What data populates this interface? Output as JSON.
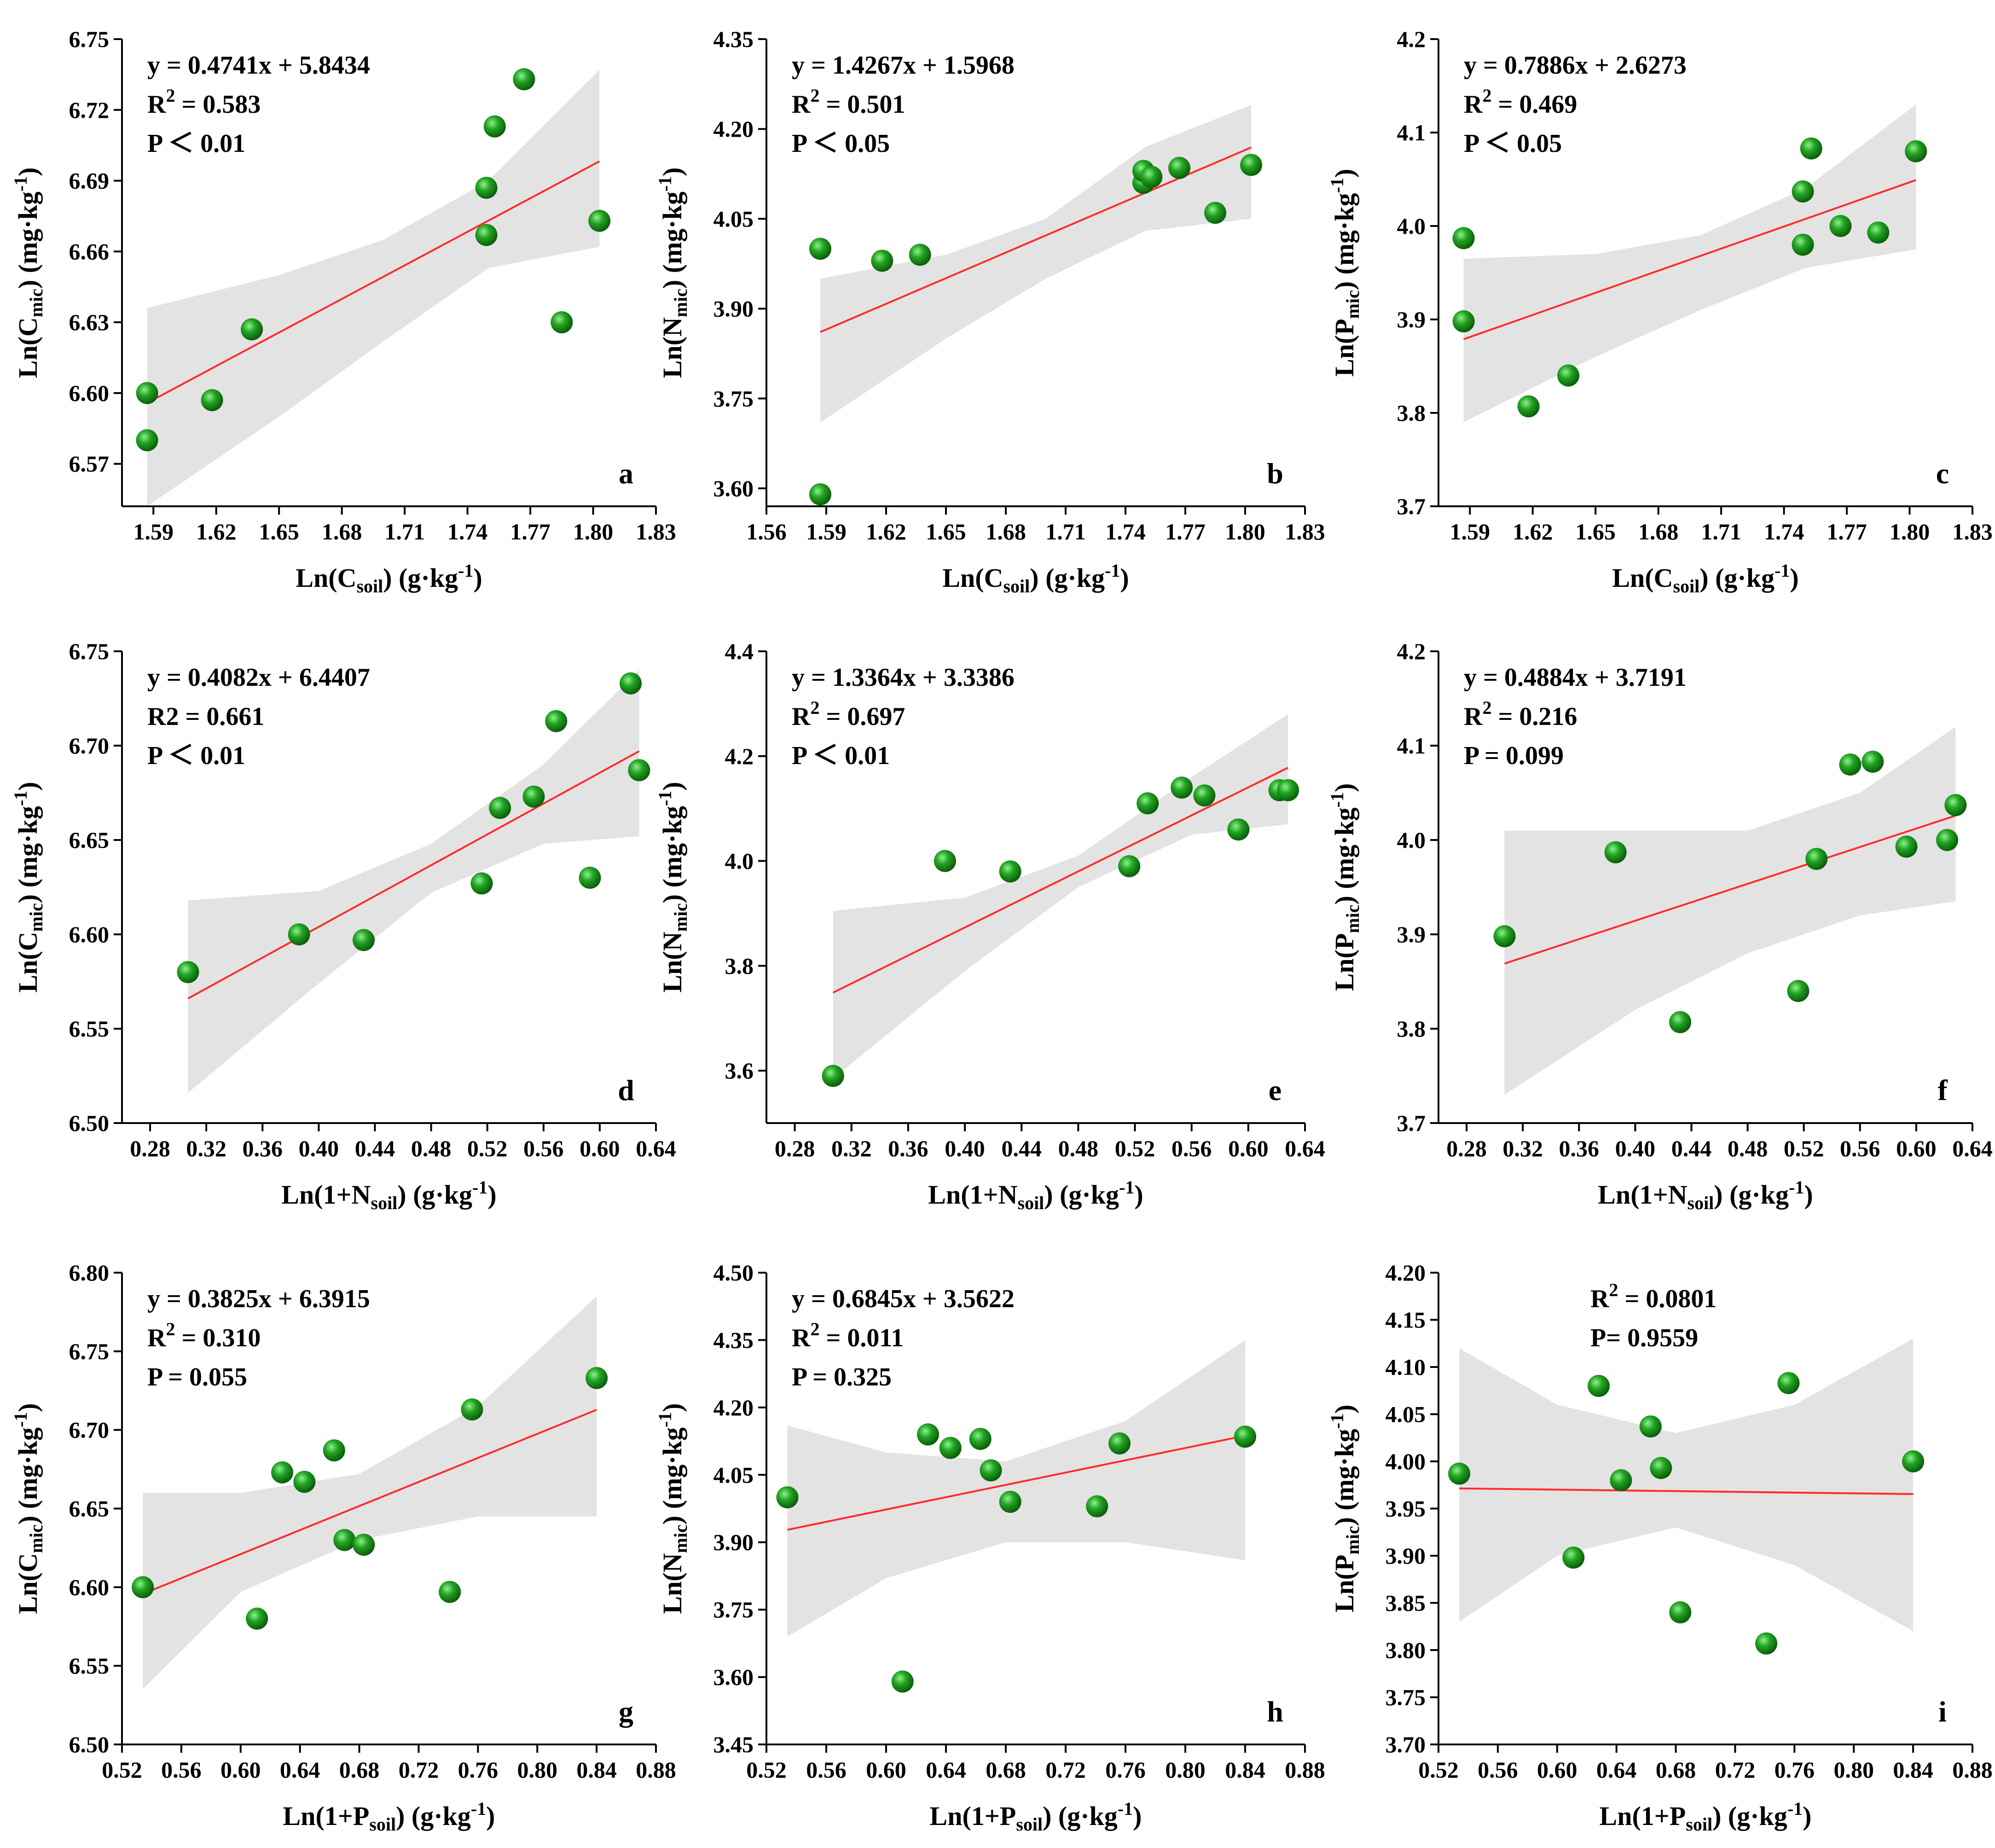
{
  "chart_data": [
    {
      "type": "scatter",
      "panel": "a",
      "xlabel_main": "Ln(C",
      "xlabel_sub": "soil",
      "xlabel_tail": ") (g·kg",
      "ylabel_main": "Ln(C",
      "ylabel_sub": "mic",
      "ylabel_tail": ") (mg·kg",
      "unit_exp": "-1",
      "xlim": [
        1.575,
        1.83
      ],
      "ylim": [
        6.552,
        6.75
      ],
      "xticks": [
        "1.59",
        "1.62",
        "1.65",
        "1.68",
        "1.71",
        "1.74",
        "1.77",
        "1.80",
        "1.83"
      ],
      "yticks": [
        "6.57",
        "6.60",
        "6.63",
        "6.66",
        "6.69",
        "6.72",
        "6.75"
      ],
      "equation": "y = 0.4741x + 5.8434",
      "r2_base": "R",
      "r2_exp": "2",
      "r2_value": " = 0.583",
      "p_text": "P ＜ 0.01",
      "fit": {
        "slope": 0.4741,
        "intercept": 5.8434,
        "xmin": 1.587,
        "xmax": 1.803
      },
      "band": {
        "top": [
          [
            1.587,
            6.636
          ],
          [
            1.65,
            6.65
          ],
          [
            1.7,
            6.665
          ],
          [
            1.75,
            6.69
          ],
          [
            1.803,
            6.737
          ]
        ],
        "bottom": [
          [
            1.587,
            6.552
          ],
          [
            1.65,
            6.59
          ],
          [
            1.7,
            6.622
          ],
          [
            1.75,
            6.653
          ],
          [
            1.803,
            6.662
          ]
        ]
      },
      "x": [
        1.587,
        1.587,
        1.618,
        1.637,
        1.749,
        1.749,
        1.753,
        1.767,
        1.785,
        1.803
      ],
      "y": [
        6.6,
        6.58,
        6.597,
        6.627,
        6.667,
        6.687,
        6.713,
        6.733,
        6.63,
        6.673
      ]
    },
    {
      "type": "scatter",
      "panel": "b",
      "xlabel_main": "Ln(C",
      "xlabel_sub": "soil",
      "xlabel_tail": ") (g·kg",
      "ylabel_main": "Ln(N",
      "ylabel_sub": "mic",
      "ylabel_tail": ") (mg·kg",
      "unit_exp": "-1",
      "xlim": [
        1.56,
        1.83
      ],
      "ylim": [
        3.57,
        4.35
      ],
      "xticks": [
        "1.56",
        "1.59",
        "1.62",
        "1.65",
        "1.68",
        "1.71",
        "1.74",
        "1.77",
        "1.80",
        "1.83"
      ],
      "yticks": [
        "3.60",
        "3.75",
        "3.90",
        "4.05",
        "4.20",
        "4.35"
      ],
      "equation": "y = 1.4267x + 1.5968",
      "r2_base": "R",
      "r2_exp": "2",
      "r2_value": " = 0.501",
      "p_text": "P ＜ 0.05",
      "fit": {
        "slope": 1.4267,
        "intercept": 1.5968,
        "xmin": 1.587,
        "xmax": 1.803
      },
      "band": {
        "top": [
          [
            1.587,
            3.95
          ],
          [
            1.65,
            3.99
          ],
          [
            1.7,
            4.05
          ],
          [
            1.75,
            4.17
          ],
          [
            1.803,
            4.24
          ]
        ],
        "bottom": [
          [
            1.587,
            3.71
          ],
          [
            1.65,
            3.85
          ],
          [
            1.7,
            3.95
          ],
          [
            1.75,
            4.03
          ],
          [
            1.803,
            4.05
          ]
        ]
      },
      "x": [
        1.587,
        1.587,
        1.618,
        1.637,
        1.749,
        1.749,
        1.753,
        1.767,
        1.785,
        1.803
      ],
      "y": [
        4.0,
        3.59,
        3.98,
        3.99,
        4.11,
        4.13,
        4.12,
        4.135,
        4.06,
        4.14
      ]
    },
    {
      "type": "scatter",
      "panel": "c",
      "xlabel_main": "Ln(C",
      "xlabel_sub": "soil",
      "xlabel_tail": ") (g·kg",
      "ylabel_main": "Ln(P",
      "ylabel_sub": "mic",
      "ylabel_tail": ") (mg·kg",
      "unit_exp": "-1",
      "xlim": [
        1.575,
        1.83
      ],
      "ylim": [
        3.7,
        4.2
      ],
      "xticks": [
        "1.59",
        "1.62",
        "1.65",
        "1.68",
        "1.71",
        "1.74",
        "1.77",
        "1.80",
        "1.83"
      ],
      "yticks": [
        "3.7",
        "3.8",
        "3.9",
        "4.0",
        "4.1",
        "4.2"
      ],
      "equation": "y = 0.7886x + 2.6273",
      "r2_base": "R",
      "r2_exp": "2",
      "r2_value": " = 0.469",
      "p_text": "P ＜ 0.05",
      "fit": {
        "slope": 0.7886,
        "intercept": 2.6273,
        "xmin": 1.587,
        "xmax": 1.803
      },
      "band": {
        "top": [
          [
            1.587,
            3.965
          ],
          [
            1.65,
            3.97
          ],
          [
            1.7,
            3.99
          ],
          [
            1.75,
            4.04
          ],
          [
            1.803,
            4.13
          ]
        ],
        "bottom": [
          [
            1.587,
            3.79
          ],
          [
            1.65,
            3.86
          ],
          [
            1.7,
            3.91
          ],
          [
            1.75,
            3.955
          ],
          [
            1.803,
            3.975
          ]
        ]
      },
      "x": [
        1.587,
        1.587,
        1.618,
        1.637,
        1.749,
        1.749,
        1.753,
        1.767,
        1.785,
        1.803
      ],
      "y": [
        3.987,
        3.898,
        3.807,
        3.84,
        3.98,
        4.037,
        4.083,
        4.0,
        3.993,
        4.08
      ]
    },
    {
      "type": "scatter",
      "panel": "d",
      "xlabel_main": "Ln(1+N",
      "xlabel_sub": "soil",
      "xlabel_tail": ") (g·kg",
      "ylabel_main": "Ln(C",
      "ylabel_sub": "mic",
      "ylabel_tail": ") (mg·kg",
      "unit_exp": "-1",
      "xlim": [
        0.26,
        0.64
      ],
      "ylim": [
        6.5,
        6.75
      ],
      "xticks": [
        "0.28",
        "0.32",
        "0.36",
        "0.40",
        "0.44",
        "0.48",
        "0.52",
        "0.56",
        "0.60",
        "0.64"
      ],
      "yticks": [
        "6.50",
        "6.55",
        "6.60",
        "6.65",
        "6.70",
        "6.75"
      ],
      "equation": "y = 0.4082x + 6.4407",
      "r2_base": "R2",
      "r2_exp": "",
      "r2_value": " = 0.661",
      "p_text": "P ＜ 0.01",
      "fit": {
        "slope": 0.4082,
        "intercept": 6.4407,
        "xmin": 0.307,
        "xmax": 0.628
      },
      "band": {
        "top": [
          [
            0.307,
            6.618
          ],
          [
            0.4,
            6.623
          ],
          [
            0.48,
            6.648
          ],
          [
            0.56,
            6.69
          ],
          [
            0.628,
            6.74
          ]
        ],
        "bottom": [
          [
            0.307,
            6.516
          ],
          [
            0.4,
            6.574
          ],
          [
            0.48,
            6.622
          ],
          [
            0.56,
            6.648
          ],
          [
            0.628,
            6.652
          ]
        ]
      },
      "x": [
        0.307,
        0.386,
        0.432,
        0.516,
        0.529,
        0.553,
        0.569,
        0.593,
        0.622,
        0.628
      ],
      "y": [
        6.58,
        6.6,
        6.597,
        6.627,
        6.667,
        6.673,
        6.713,
        6.63,
        6.733,
        6.687
      ]
    },
    {
      "type": "scatter",
      "panel": "e",
      "xlabel_main": "Ln(1+N",
      "xlabel_sub": "soil",
      "xlabel_tail": ") (g·kg",
      "ylabel_main": "Ln(N",
      "ylabel_sub": "mic",
      "ylabel_tail": ") (mg·kg",
      "unit_exp": "-1",
      "xlim": [
        0.26,
        0.64
      ],
      "ylim": [
        3.5,
        4.4
      ],
      "xticks": [
        "0.28",
        "0.32",
        "0.36",
        "0.40",
        "0.44",
        "0.48",
        "0.52",
        "0.56",
        "0.60",
        "0.64"
      ],
      "yticks": [
        "3.6",
        "3.8",
        "4.0",
        "4.2",
        "4.4"
      ],
      "equation": "y = 1.3364x + 3.3386",
      "r2_base": "R",
      "r2_exp": "2",
      "r2_value": " = 0.697",
      "p_text": "P ＜ 0.01",
      "fit": {
        "slope": 1.3364,
        "intercept": 3.3386,
        "xmin": 0.307,
        "xmax": 0.628
      },
      "band": {
        "top": [
          [
            0.307,
            3.905
          ],
          [
            0.4,
            3.93
          ],
          [
            0.48,
            4.01
          ],
          [
            0.56,
            4.16
          ],
          [
            0.628,
            4.28
          ]
        ],
        "bottom": [
          [
            0.307,
            3.585
          ],
          [
            0.4,
            3.79
          ],
          [
            0.48,
            3.95
          ],
          [
            0.56,
            4.05
          ],
          [
            0.628,
            4.07
          ]
        ]
      },
      "x": [
        0.307,
        0.386,
        0.432,
        0.516,
        0.529,
        0.553,
        0.569,
        0.593,
        0.622,
        0.628
      ],
      "y": [
        3.59,
        4.0,
        3.98,
        3.99,
        4.11,
        4.14,
        4.125,
        4.06,
        4.135,
        4.135
      ]
    },
    {
      "type": "scatter",
      "panel": "f",
      "xlabel_main": "Ln(1+N",
      "xlabel_sub": "soil",
      "xlabel_tail": ") (g·kg",
      "ylabel_main": "Ln(P",
      "ylabel_sub": "mic",
      "ylabel_tail": ") (mg·kg",
      "unit_exp": "-1",
      "xlim": [
        0.26,
        0.64
      ],
      "ylim": [
        3.7,
        4.2
      ],
      "xticks": [
        "0.28",
        "0.32",
        "0.36",
        "0.40",
        "0.44",
        "0.48",
        "0.52",
        "0.56",
        "0.60",
        "0.64"
      ],
      "yticks": [
        "3.7",
        "3.8",
        "3.9",
        "4.0",
        "4.1",
        "4.2"
      ],
      "equation": "y = 0.4884x + 3.7191",
      "r2_base": "R",
      "r2_exp": "2",
      "r2_value": " = 0.216",
      "p_text": "P = 0.099",
      "fit": {
        "slope": 0.4884,
        "intercept": 3.7191,
        "xmin": 0.307,
        "xmax": 0.628
      },
      "band": {
        "top": [
          [
            0.307,
            4.01
          ],
          [
            0.4,
            4.01
          ],
          [
            0.48,
            4.01
          ],
          [
            0.56,
            4.05
          ],
          [
            0.628,
            4.12
          ]
        ],
        "bottom": [
          [
            0.307,
            3.73
          ],
          [
            0.4,
            3.82
          ],
          [
            0.48,
            3.88
          ],
          [
            0.56,
            3.92
          ],
          [
            0.628,
            3.935
          ]
        ]
      },
      "x": [
        0.307,
        0.386,
        0.432,
        0.516,
        0.529,
        0.553,
        0.569,
        0.593,
        0.622,
        0.628
      ],
      "y": [
        3.898,
        3.987,
        3.807,
        3.84,
        3.98,
        4.08,
        4.083,
        3.993,
        4.0,
        4.037
      ]
    },
    {
      "type": "scatter",
      "panel": "g",
      "xlabel_main": "Ln(1+P",
      "xlabel_sub": "soil",
      "xlabel_tail": ") (g·kg",
      "ylabel_main": "Ln(C",
      "ylabel_sub": "mic",
      "ylabel_tail": ") (mg·kg",
      "unit_exp": "-1",
      "xlim": [
        0.52,
        0.88
      ],
      "ylim": [
        6.5,
        6.8
      ],
      "xticks": [
        "0.52",
        "0.56",
        "0.60",
        "0.64",
        "0.68",
        "0.72",
        "0.76",
        "0.80",
        "0.84",
        "0.88"
      ],
      "yticks": [
        "6.50",
        "6.55",
        "6.60",
        "6.65",
        "6.70",
        "6.75",
        "6.80"
      ],
      "equation": "y = 0.3825x + 6.3915",
      "r2_base": "R",
      "r2_exp": "2",
      "r2_value": " = 0.310",
      "p_text": "P = 0.055",
      "fit": {
        "slope": 0.3825,
        "intercept": 6.3915,
        "xmin": 0.534,
        "xmax": 0.84
      },
      "band": {
        "top": [
          [
            0.534,
            6.66
          ],
          [
            0.6,
            6.66
          ],
          [
            0.68,
            6.672
          ],
          [
            0.76,
            6.715
          ],
          [
            0.84,
            6.785
          ]
        ],
        "bottom": [
          [
            0.534,
            6.535
          ],
          [
            0.6,
            6.597
          ],
          [
            0.68,
            6.63
          ],
          [
            0.76,
            6.645
          ],
          [
            0.84,
            6.645
          ]
        ]
      },
      "x": [
        0.534,
        0.611,
        0.628,
        0.643,
        0.663,
        0.67,
        0.683,
        0.741,
        0.756,
        0.84
      ],
      "y": [
        6.6,
        6.58,
        6.673,
        6.667,
        6.687,
        6.63,
        6.627,
        6.597,
        6.713,
        6.733
      ]
    },
    {
      "type": "scatter",
      "panel": "h",
      "xlabel_main": "Ln(1+P",
      "xlabel_sub": "soil",
      "xlabel_tail": ") (g·kg",
      "ylabel_main": "Ln(N",
      "ylabel_sub": "mic",
      "ylabel_tail": ") (mg·kg",
      "unit_exp": "-1",
      "xlim": [
        0.52,
        0.88
      ],
      "ylim": [
        3.45,
        4.5
      ],
      "xticks": [
        "0.52",
        "0.56",
        "0.60",
        "0.64",
        "0.68",
        "0.72",
        "0.76",
        "0.80",
        "0.84",
        "0.88"
      ],
      "yticks": [
        "3.45",
        "3.60",
        "3.75",
        "3.90",
        "4.05",
        "4.20",
        "4.35",
        "4.50"
      ],
      "equation": "y = 0.6845x + 3.5622",
      "r2_base": "R",
      "r2_exp": "2",
      "r2_value": " = 0.011",
      "p_text": "P = 0.325",
      "fit": {
        "slope": 0.6845,
        "intercept": 3.5622,
        "xmin": 0.534,
        "xmax": 0.84
      },
      "band": {
        "top": [
          [
            0.534,
            4.16
          ],
          [
            0.6,
            4.1
          ],
          [
            0.68,
            4.08
          ],
          [
            0.76,
            4.17
          ],
          [
            0.84,
            4.35
          ]
        ],
        "bottom": [
          [
            0.534,
            3.69
          ],
          [
            0.6,
            3.82
          ],
          [
            0.68,
            3.9
          ],
          [
            0.76,
            3.9
          ],
          [
            0.84,
            3.86
          ]
        ]
      },
      "x": [
        0.534,
        0.611,
        0.628,
        0.643,
        0.663,
        0.67,
        0.683,
        0.741,
        0.756,
        0.84
      ],
      "y": [
        4.0,
        3.59,
        4.14,
        4.11,
        4.13,
        4.06,
        3.99,
        3.98,
        4.12,
        4.135
      ]
    },
    {
      "type": "scatter",
      "panel": "i",
      "xlabel_main": "Ln(1+P",
      "xlabel_sub": "soil",
      "xlabel_tail": ") (g·kg",
      "ylabel_main": "Ln(P",
      "ylabel_sub": "mic",
      "ylabel_tail": ") (mg·kg",
      "unit_exp": "-1",
      "xlim": [
        0.52,
        0.88
      ],
      "ylim": [
        3.7,
        4.2
      ],
      "xticks": [
        "0.52",
        "0.56",
        "0.60",
        "0.64",
        "0.68",
        "0.72",
        "0.76",
        "0.80",
        "0.84",
        "0.88"
      ],
      "yticks": [
        "3.70",
        "3.75",
        "3.80",
        "3.85",
        "3.90",
        "3.95",
        "4.00",
        "4.05",
        "4.10",
        "4.15",
        "4.20"
      ],
      "equation": "",
      "r2_base": "R",
      "r2_exp": "2",
      "r2_value": " = 0.0801",
      "p_text": "P= 0.9559",
      "fit": {
        "slope": -0.0196,
        "intercept": 3.9818,
        "xmin": 0.534,
        "xmax": 0.84
      },
      "band": {
        "top": [
          [
            0.534,
            4.12
          ],
          [
            0.6,
            4.06
          ],
          [
            0.68,
            4.03
          ],
          [
            0.76,
            4.06
          ],
          [
            0.84,
            4.13
          ]
        ],
        "bottom": [
          [
            0.534,
            3.83
          ],
          [
            0.6,
            3.9
          ],
          [
            0.68,
            3.93
          ],
          [
            0.76,
            3.89
          ],
          [
            0.84,
            3.82
          ]
        ]
      },
      "x": [
        0.534,
        0.611,
        0.628,
        0.643,
        0.663,
        0.67,
        0.683,
        0.741,
        0.756,
        0.84
      ],
      "y": [
        3.987,
        3.898,
        4.08,
        3.98,
        4.037,
        3.993,
        3.84,
        3.807,
        4.083,
        4.0
      ]
    }
  ],
  "colors": {
    "marker": "#22a322",
    "marker_light": "#7ce07c",
    "marker_dark": "#0b6b0b",
    "fit_line": "#ff2a2a",
    "band": "#d9d9d9"
  }
}
